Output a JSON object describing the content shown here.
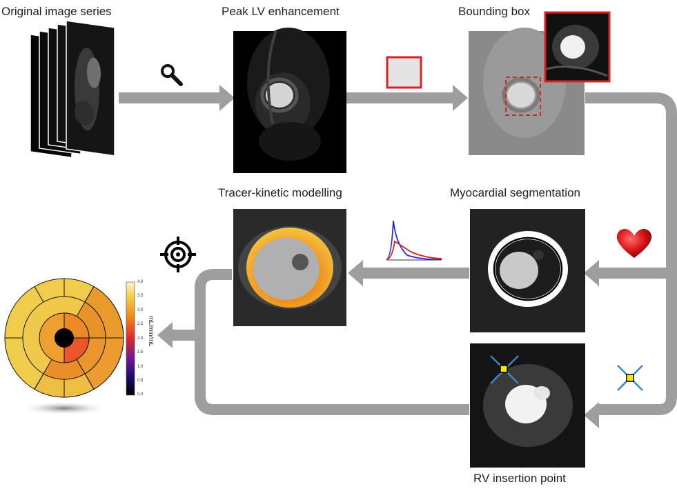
{
  "labels": {
    "original": "Original image series",
    "peak": "Peak LV enhancement",
    "bbox": "Bounding box",
    "tracer": "Tracer-kinetic modelling",
    "myo": "Myocardial segmentation",
    "rv": "RV insertion point"
  },
  "colorbar": {
    "ticks": [
      "4.0",
      "3.5",
      "3.0",
      "2.5",
      "2.0",
      "1.5",
      "1.0",
      "0.5",
      "0.0"
    ],
    "units": "mL/min/mL"
  },
  "icons": [
    "magnifier-icon",
    "box-icon",
    "heart-icon",
    "crosshair-icon",
    "target-icon",
    "curve-icon"
  ],
  "colors": {
    "arrow": "#9e9e9e",
    "accent_red": "#e0201e",
    "curve_blue": "#2a2ad8"
  }
}
